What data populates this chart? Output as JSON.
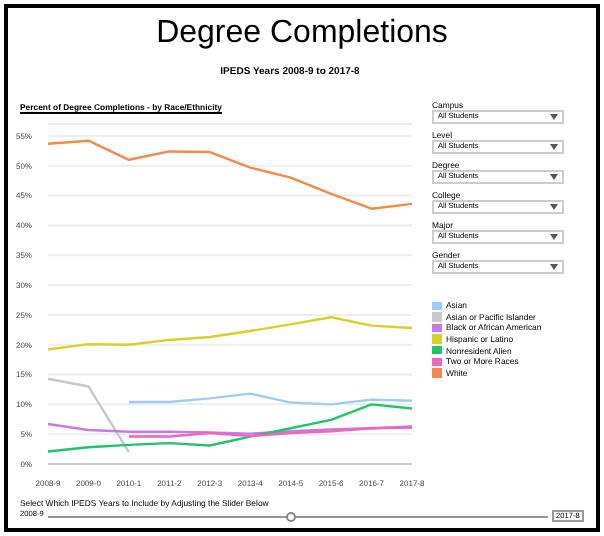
{
  "chart_data": {
    "type": "line",
    "title": "Degree Completions",
    "subtitle": "IPEDS Years 2008-9 to 2017-8",
    "annotations": [
      "Percent of Degree Completions - by Race/Ethnicity",
      "Select Which IPEDS Years to Include by Adjusting the Slider Below",
      "2008-9",
      "2017-8",
      "Campus",
      "All Students",
      "Level",
      "All Students",
      "Degree",
      "All Students",
      "College",
      "All Students",
      "Major",
      "All Students",
      "Gender",
      "All Students"
    ],
    "categories": [
      "2008-9",
      "2009-0",
      "2010-1",
      "2011-2",
      "2012-3",
      "2013-4",
      "2014-5",
      "2015-6",
      "2016-7",
      "2017-8"
    ],
    "series": [
      {
        "name": "Asian",
        "color": "#9fcdf0",
        "values": [
          null,
          null,
          10.4,
          10.4,
          11,
          11.8,
          10.3,
          10,
          10.8,
          10.6
        ]
      },
      {
        "name": "Asian or Pacific Islander",
        "color": "#c8c8c8",
        "values": [
          14.3,
          13,
          2,
          null,
          null,
          null,
          null,
          null,
          null,
          null
        ]
      },
      {
        "name": "Black or African American",
        "color": "#c27ce8",
        "values": [
          6.7,
          5.7,
          5.4,
          5.4,
          5.3,
          5.1,
          5.5,
          5.8,
          6,
          6.3
        ]
      },
      {
        "name": "Hispanic or Latino",
        "color": "#d9cf2a",
        "values": [
          19.2,
          20.1,
          20,
          20.8,
          21.3,
          22.3,
          23.4,
          24.6,
          23.2,
          22.8
        ]
      },
      {
        "name": "Nonresident Alien",
        "color": "#22c46a",
        "values": [
          2.1,
          2.8,
          3.2,
          3.5,
          3.1,
          4.6,
          6,
          7.4,
          10,
          9.3
        ]
      },
      {
        "name": "Two or More Races",
        "color": "#f064c0",
        "values": [
          null,
          null,
          4.6,
          4.6,
          5.2,
          4.7,
          5.2,
          5.5,
          6,
          6.1
        ]
      },
      {
        "name": "White",
        "color": "#f5894a",
        "values": [
          53.7,
          54.2,
          51,
          52.4,
          52.3,
          49.7,
          48,
          45.3,
          42.8,
          43.6
        ]
      }
    ],
    "ylim": [
      0,
      57
    ],
    "yticks": [
      {
        "value": 0,
        "label": "0%"
      },
      {
        "value": 5,
        "label": "5%"
      },
      {
        "value": 10,
        "label": "10%"
      },
      {
        "value": 15,
        "label": "15%"
      },
      {
        "value": 20,
        "label": "20%"
      },
      {
        "value": 25,
        "label": "25%"
      },
      {
        "value": 30,
        "label": "30%"
      },
      {
        "value": 35,
        "label": "35%"
      },
      {
        "value": 40,
        "label": "40%"
      },
      {
        "value": 45,
        "label": "45%"
      },
      {
        "value": 50,
        "label": "50%"
      },
      {
        "value": 55,
        "label": "55%"
      }
    ],
    "grid": "y",
    "legend": "right",
    "marker": "none",
    "line_style": "solid"
  }
}
